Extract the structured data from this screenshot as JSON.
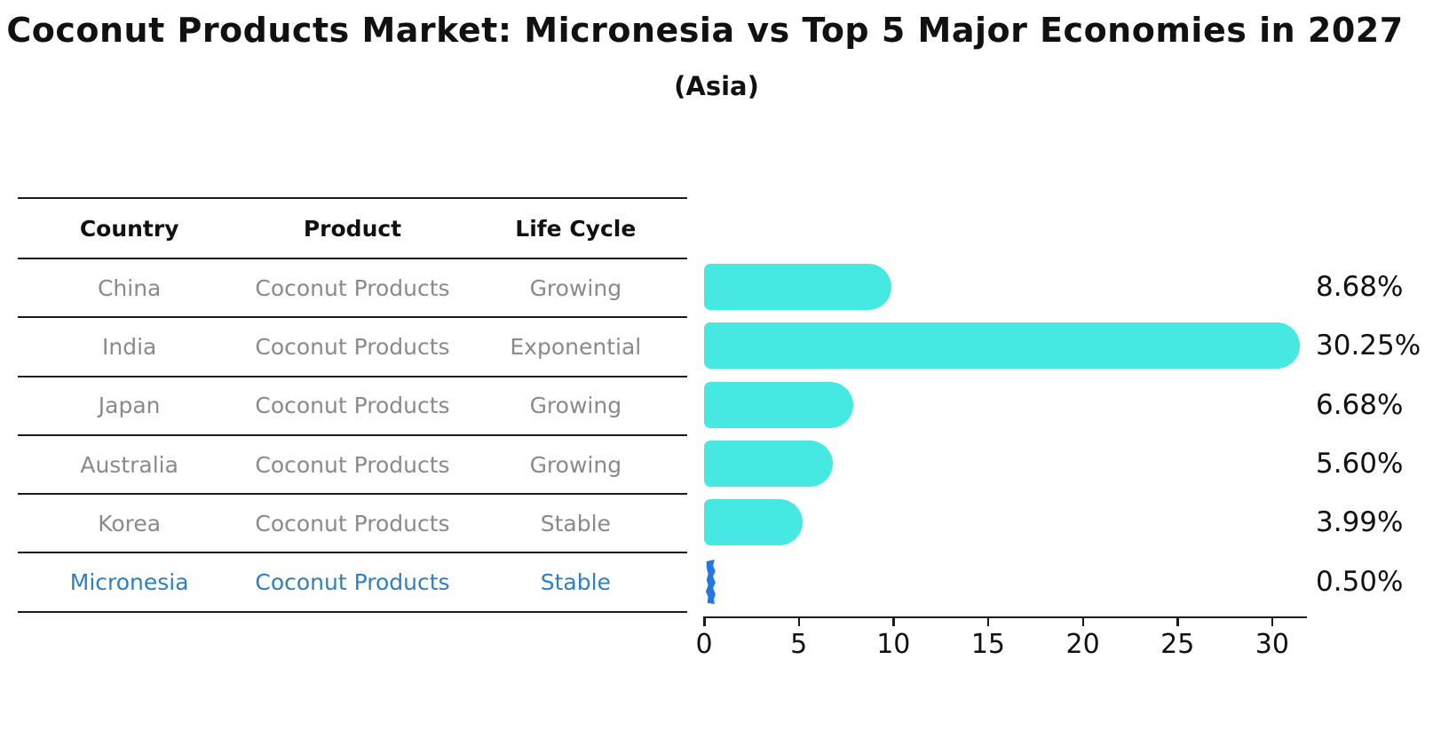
{
  "title": "Coconut Products Market: Micronesia vs Top 5 Major Economies in 2027",
  "subtitle": "(Asia)",
  "table": {
    "headers": [
      "Country",
      "Product",
      "Life Cycle"
    ],
    "rows": [
      {
        "country": "China",
        "product": "Coconut Products",
        "life_cycle": "Growing",
        "highlight": false
      },
      {
        "country": "India",
        "product": "Coconut Products",
        "life_cycle": "Exponential",
        "highlight": false
      },
      {
        "country": "Japan",
        "product": "Coconut Products",
        "life_cycle": "Growing",
        "highlight": false
      },
      {
        "country": "Australia",
        "product": "Coconut Products",
        "life_cycle": "Growing",
        "highlight": false
      },
      {
        "country": "Korea",
        "product": "Coconut Products",
        "life_cycle": "Stable",
        "highlight": false
      },
      {
        "country": "Micronesia",
        "product": "Coconut Products",
        "life_cycle": "Stable",
        "highlight": true
      }
    ]
  },
  "chart_data": {
    "type": "bar",
    "orientation": "horizontal",
    "title": "Coconut Products Market: Micronesia vs Top 5 Major Economies in 2027 (Asia)",
    "categories": [
      "China",
      "India",
      "Japan",
      "Australia",
      "Korea",
      "Micronesia"
    ],
    "values": [
      8.68,
      30.25,
      6.68,
      5.6,
      3.99,
      0.5
    ],
    "value_labels": [
      "8.68%",
      "30.25%",
      "6.68%",
      "5.60%",
      "3.99%",
      "0.50%"
    ],
    "xticks": [
      0,
      5,
      10,
      15,
      20,
      25,
      30
    ],
    "xlim": [
      0,
      31.8
    ],
    "xlabel": "",
    "ylabel": "",
    "grid": false,
    "legend": false,
    "bar_color": "#46e8e2",
    "highlight_color": "#2277e0",
    "highlight_text_color": "#2e7fc2",
    "highlight_index": 5
  }
}
